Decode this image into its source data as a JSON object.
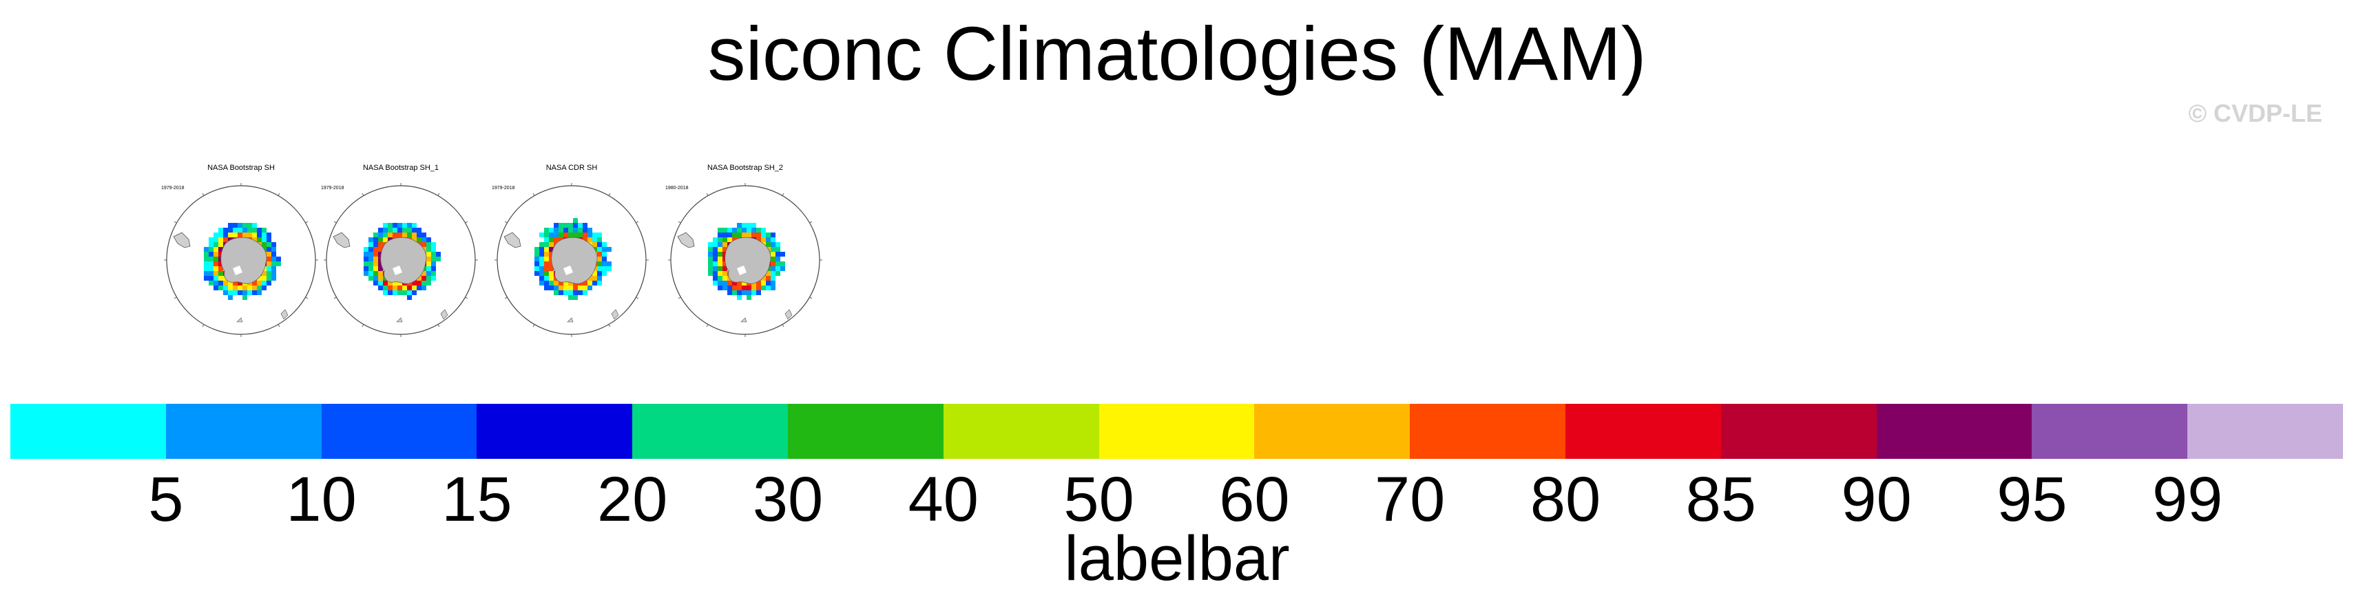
{
  "title": "siconc Climatologies (MAM)",
  "copyright": "© CVDP-LE",
  "panels": [
    {
      "title": "NASA Bootstrap SH",
      "period": "1979-2018"
    },
    {
      "title": "NASA Bootstrap SH_1",
      "period": "1979-2018"
    },
    {
      "title": "NASA CDR SH",
      "period": "1979-2018"
    },
    {
      "title": "NASA Bootstrap SH_2",
      "period": "1980-2018"
    }
  ],
  "labelbar": {
    "label": "labelbar",
    "ticks": [
      "5",
      "10",
      "15",
      "20",
      "30",
      "40",
      "50",
      "60",
      "70",
      "80",
      "85",
      "90",
      "95",
      "99"
    ],
    "colors": [
      "#00ffff",
      "#0096ff",
      "#0050ff",
      "#0000e0",
      "#00d882",
      "#22b814",
      "#b9e800",
      "#fff500",
      "#ffb800",
      "#ff4800",
      "#e60018",
      "#b90030",
      "#820064",
      "#8c50af",
      "#c8afdc"
    ]
  },
  "map": {
    "land_color": "#bfbfbf",
    "ice_colors": [
      "#00ffff",
      "#0096ff",
      "#0050ff",
      "#00d882",
      "#22b814",
      "#fff500",
      "#ffb800",
      "#ff4800",
      "#e60018",
      "#820064"
    ]
  }
}
